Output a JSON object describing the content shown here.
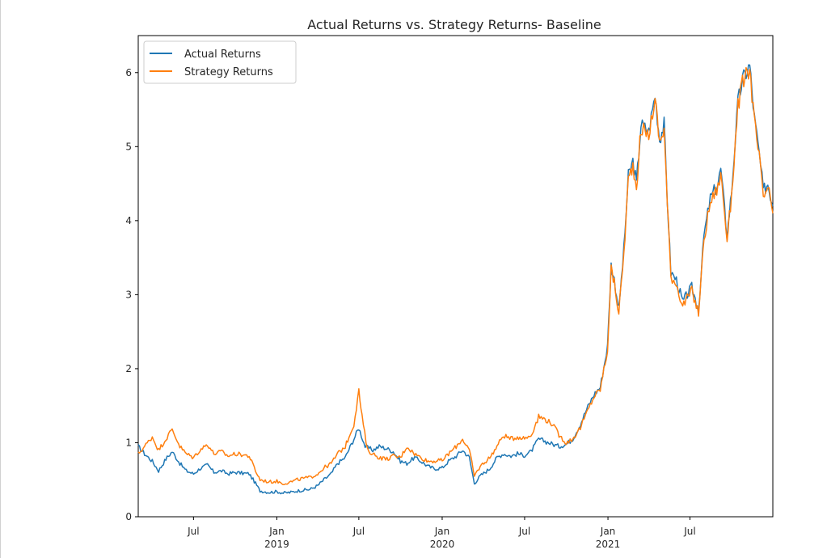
{
  "chart_data": {
    "type": "line",
    "title": "Actual Returns vs. Strategy Returns- Baseline",
    "xlabel": "",
    "ylabel": "",
    "ylim": [
      0,
      6.5
    ],
    "xlim": [
      "2018-03-01",
      "2021-12-31"
    ],
    "grid": false,
    "legend_position": "top-left",
    "y_ticks": [
      0,
      1,
      2,
      3,
      4,
      5,
      6
    ],
    "y_tick_labels": [
      "0",
      "1",
      "2",
      "3",
      "4",
      "5",
      "6"
    ],
    "x_ticks": [
      {
        "date": "2018-07-01",
        "label": "Jul",
        "sublabel": ""
      },
      {
        "date": "2019-01-01",
        "label": "Jan",
        "sublabel": "2019"
      },
      {
        "date": "2019-07-01",
        "label": "Jul",
        "sublabel": ""
      },
      {
        "date": "2020-01-01",
        "label": "Jan",
        "sublabel": "2020"
      },
      {
        "date": "2020-07-01",
        "label": "Jul",
        "sublabel": ""
      },
      {
        "date": "2021-01-01",
        "label": "Jan",
        "sublabel": "2021"
      },
      {
        "date": "2021-07-01",
        "label": "Jul",
        "sublabel": ""
      }
    ],
    "series": [
      {
        "name": "Actual Returns",
        "color": "#1f77b4",
        "points": [
          [
            "2018-03-01",
            0.95
          ],
          [
            "2018-03-15",
            0.85
          ],
          [
            "2018-04-01",
            0.75
          ],
          [
            "2018-04-15",
            0.62
          ],
          [
            "2018-05-01",
            0.78
          ],
          [
            "2018-05-15",
            0.88
          ],
          [
            "2018-06-01",
            0.72
          ],
          [
            "2018-06-15",
            0.62
          ],
          [
            "2018-07-01",
            0.58
          ],
          [
            "2018-07-15",
            0.65
          ],
          [
            "2018-08-01",
            0.7
          ],
          [
            "2018-08-15",
            0.6
          ],
          [
            "2018-09-01",
            0.62
          ],
          [
            "2018-09-15",
            0.58
          ],
          [
            "2018-10-01",
            0.6
          ],
          [
            "2018-10-15",
            0.59
          ],
          [
            "2018-11-01",
            0.58
          ],
          [
            "2018-11-15",
            0.45
          ],
          [
            "2018-11-25",
            0.35
          ],
          [
            "2018-12-15",
            0.33
          ],
          [
            "2019-01-01",
            0.34
          ],
          [
            "2019-01-15",
            0.32
          ],
          [
            "2019-02-01",
            0.33
          ],
          [
            "2019-02-15",
            0.35
          ],
          [
            "2019-03-01",
            0.36
          ],
          [
            "2019-03-15",
            0.37
          ],
          [
            "2019-04-01",
            0.42
          ],
          [
            "2019-04-15",
            0.5
          ],
          [
            "2019-05-01",
            0.58
          ],
          [
            "2019-05-15",
            0.72
          ],
          [
            "2019-06-01",
            0.8
          ],
          [
            "2019-06-20",
            1.05
          ],
          [
            "2019-07-01",
            1.2
          ],
          [
            "2019-07-15",
            0.95
          ],
          [
            "2019-08-01",
            0.9
          ],
          [
            "2019-08-15",
            0.95
          ],
          [
            "2019-09-01",
            0.92
          ],
          [
            "2019-09-15",
            0.88
          ],
          [
            "2019-10-01",
            0.75
          ],
          [
            "2019-10-15",
            0.72
          ],
          [
            "2019-11-01",
            0.8
          ],
          [
            "2019-11-15",
            0.75
          ],
          [
            "2019-12-01",
            0.68
          ],
          [
            "2019-12-15",
            0.65
          ],
          [
            "2020-01-01",
            0.66
          ],
          [
            "2020-01-15",
            0.75
          ],
          [
            "2020-02-01",
            0.82
          ],
          [
            "2020-02-15",
            0.9
          ],
          [
            "2020-03-01",
            0.8
          ],
          [
            "2020-03-12",
            0.45
          ],
          [
            "2020-03-25",
            0.55
          ],
          [
            "2020-04-15",
            0.65
          ],
          [
            "2020-05-01",
            0.8
          ],
          [
            "2020-05-15",
            0.85
          ],
          [
            "2020-06-01",
            0.82
          ],
          [
            "2020-06-15",
            0.85
          ],
          [
            "2020-07-01",
            0.83
          ],
          [
            "2020-07-15",
            0.88
          ],
          [
            "2020-08-01",
            1.05
          ],
          [
            "2020-08-15",
            1.02
          ],
          [
            "2020-09-01",
            0.98
          ],
          [
            "2020-09-15",
            0.95
          ],
          [
            "2020-10-01",
            0.98
          ],
          [
            "2020-10-15",
            1.05
          ],
          [
            "2020-11-01",
            1.25
          ],
          [
            "2020-11-15",
            1.45
          ],
          [
            "2020-12-01",
            1.65
          ],
          [
            "2020-12-15",
            1.75
          ],
          [
            "2020-12-31",
            2.3
          ],
          [
            "2021-01-08",
            3.4
          ],
          [
            "2021-01-15",
            3.2
          ],
          [
            "2021-01-25",
            2.8
          ],
          [
            "2021-02-05",
            3.6
          ],
          [
            "2021-02-15",
            4.6
          ],
          [
            "2021-02-25",
            4.8
          ],
          [
            "2021-03-05",
            4.5
          ],
          [
            "2021-03-15",
            5.3
          ],
          [
            "2021-04-01",
            5.2
          ],
          [
            "2021-04-15",
            5.7
          ],
          [
            "2021-04-25",
            5.1
          ],
          [
            "2021-05-05",
            5.3
          ],
          [
            "2021-05-12",
            4.3
          ],
          [
            "2021-05-20",
            3.3
          ],
          [
            "2021-06-01",
            3.2
          ],
          [
            "2021-06-15",
            2.9
          ],
          [
            "2021-06-25",
            3.0
          ],
          [
            "2021-07-05",
            3.1
          ],
          [
            "2021-07-20",
            2.8
          ],
          [
            "2021-08-01",
            3.8
          ],
          [
            "2021-08-15",
            4.3
          ],
          [
            "2021-09-01",
            4.5
          ],
          [
            "2021-09-07",
            4.7
          ],
          [
            "2021-09-21",
            3.8
          ],
          [
            "2021-10-01",
            4.4
          ],
          [
            "2021-10-15",
            5.6
          ],
          [
            "2021-10-25",
            5.9
          ],
          [
            "2021-11-10",
            6.1
          ],
          [
            "2021-11-20",
            5.4
          ],
          [
            "2021-12-01",
            4.9
          ],
          [
            "2021-12-10",
            4.4
          ],
          [
            "2021-12-20",
            4.5
          ],
          [
            "2021-12-31",
            4.2
          ]
        ]
      },
      {
        "name": "Strategy Returns",
        "color": "#ff7f0e",
        "points": [
          [
            "2018-03-01",
            0.85
          ],
          [
            "2018-03-15",
            0.95
          ],
          [
            "2018-04-01",
            1.08
          ],
          [
            "2018-04-15",
            0.9
          ],
          [
            "2018-05-01",
            1.05
          ],
          [
            "2018-05-15",
            1.18
          ],
          [
            "2018-06-01",
            0.95
          ],
          [
            "2018-06-15",
            0.85
          ],
          [
            "2018-07-01",
            0.8
          ],
          [
            "2018-07-15",
            0.9
          ],
          [
            "2018-08-01",
            0.98
          ],
          [
            "2018-08-15",
            0.85
          ],
          [
            "2018-09-01",
            0.88
          ],
          [
            "2018-09-15",
            0.82
          ],
          [
            "2018-10-01",
            0.85
          ],
          [
            "2018-10-15",
            0.84
          ],
          [
            "2018-11-01",
            0.82
          ],
          [
            "2018-11-15",
            0.62
          ],
          [
            "2018-11-25",
            0.5
          ],
          [
            "2018-12-15",
            0.47
          ],
          [
            "2019-01-01",
            0.48
          ],
          [
            "2019-01-15",
            0.45
          ],
          [
            "2019-02-01",
            0.47
          ],
          [
            "2019-02-15",
            0.5
          ],
          [
            "2019-03-01",
            0.52
          ],
          [
            "2019-03-15",
            0.53
          ],
          [
            "2019-04-01",
            0.58
          ],
          [
            "2019-04-15",
            0.66
          ],
          [
            "2019-05-01",
            0.72
          ],
          [
            "2019-05-15",
            0.85
          ],
          [
            "2019-06-01",
            0.95
          ],
          [
            "2019-06-20",
            1.25
          ],
          [
            "2019-07-01",
            1.7
          ],
          [
            "2019-07-08",
            1.35
          ],
          [
            "2019-07-20",
            0.9
          ],
          [
            "2019-08-01",
            0.85
          ],
          [
            "2019-08-15",
            0.8
          ],
          [
            "2019-09-01",
            0.78
          ],
          [
            "2019-09-15",
            0.82
          ],
          [
            "2019-10-01",
            0.8
          ],
          [
            "2019-10-15",
            0.95
          ],
          [
            "2019-11-01",
            0.85
          ],
          [
            "2019-11-15",
            0.8
          ],
          [
            "2019-12-01",
            0.75
          ],
          [
            "2020-01-01",
            0.76
          ],
          [
            "2020-01-15",
            0.85
          ],
          [
            "2020-02-01",
            0.95
          ],
          [
            "2020-02-15",
            1.05
          ],
          [
            "2020-03-01",
            0.9
          ],
          [
            "2020-03-12",
            0.55
          ],
          [
            "2020-03-25",
            0.68
          ],
          [
            "2020-04-15",
            0.8
          ],
          [
            "2020-05-01",
            0.95
          ],
          [
            "2020-05-15",
            1.1
          ],
          [
            "2020-06-01",
            1.05
          ],
          [
            "2020-06-15",
            1.08
          ],
          [
            "2020-07-01",
            1.06
          ],
          [
            "2020-07-15",
            1.1
          ],
          [
            "2020-08-01",
            1.35
          ],
          [
            "2020-08-15",
            1.32
          ],
          [
            "2020-09-01",
            1.25
          ],
          [
            "2020-09-15",
            1.1
          ],
          [
            "2020-10-01",
            1.0
          ],
          [
            "2020-10-15",
            1.05
          ],
          [
            "2020-11-01",
            1.2
          ],
          [
            "2020-11-15",
            1.4
          ],
          [
            "2020-12-01",
            1.62
          ],
          [
            "2020-12-15",
            1.72
          ],
          [
            "2020-12-31",
            2.25
          ],
          [
            "2021-01-08",
            3.35
          ],
          [
            "2021-01-15",
            3.15
          ],
          [
            "2021-01-25",
            2.75
          ],
          [
            "2021-02-05",
            3.55
          ],
          [
            "2021-02-15",
            4.55
          ],
          [
            "2021-02-25",
            4.75
          ],
          [
            "2021-03-05",
            4.45
          ],
          [
            "2021-03-15",
            5.25
          ],
          [
            "2021-04-01",
            5.15
          ],
          [
            "2021-04-15",
            5.65
          ],
          [
            "2021-04-25",
            5.05
          ],
          [
            "2021-05-05",
            5.25
          ],
          [
            "2021-05-12",
            4.25
          ],
          [
            "2021-05-20",
            3.25
          ],
          [
            "2021-06-01",
            3.15
          ],
          [
            "2021-06-15",
            2.85
          ],
          [
            "2021-06-25",
            2.95
          ],
          [
            "2021-07-05",
            3.05
          ],
          [
            "2021-07-20",
            2.75
          ],
          [
            "2021-08-01",
            3.75
          ],
          [
            "2021-08-15",
            4.25
          ],
          [
            "2021-09-01",
            4.45
          ],
          [
            "2021-09-07",
            4.65
          ],
          [
            "2021-09-21",
            3.75
          ],
          [
            "2021-10-01",
            4.35
          ],
          [
            "2021-10-15",
            5.55
          ],
          [
            "2021-10-25",
            5.85
          ],
          [
            "2021-11-10",
            6.05
          ],
          [
            "2021-11-20",
            5.35
          ],
          [
            "2021-12-01",
            4.85
          ],
          [
            "2021-12-10",
            4.3
          ],
          [
            "2021-12-20",
            4.45
          ],
          [
            "2021-12-31",
            4.1
          ]
        ]
      }
    ]
  }
}
